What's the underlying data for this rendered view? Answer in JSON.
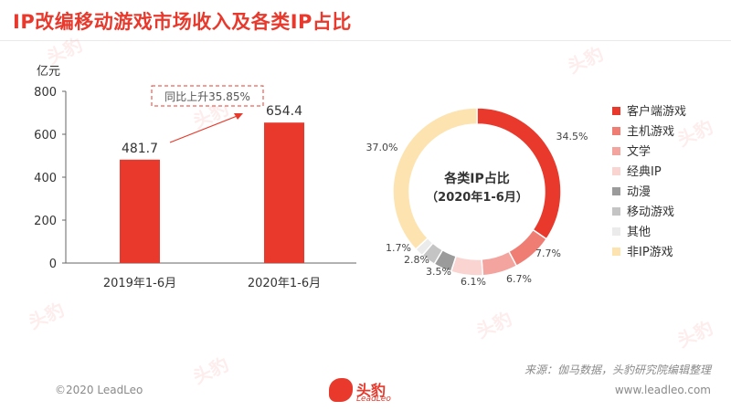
{
  "title": "IP改编移动游戏市场收入及各类IP占比",
  "bar_chart": {
    "unit_label": "亿元",
    "annotation": "同比上升35.85%",
    "bar_color": "#e8392c"
  },
  "donut_chart": {
    "center_line1": "各类IP占比",
    "center_line2": "（2020年1-6月）"
  },
  "chart_data": [
    {
      "type": "bar",
      "categories": [
        "2019年1-6月",
        "2020年1-6月"
      ],
      "values": [
        481.7,
        654.4
      ],
      "value_labels": [
        "481.7",
        "654.4"
      ],
      "ylabel": "亿元",
      "ylim": [
        0,
        800
      ],
      "yticks": [
        0,
        200,
        400,
        600,
        800
      ],
      "grid": false
    },
    {
      "type": "pie",
      "style": "donut",
      "legend_position": "right",
      "slices": [
        {
          "name": "客户端游戏",
          "value": 34.5,
          "label": "34.5%",
          "color": "#e8392c"
        },
        {
          "name": "主机游戏",
          "value": 7.7,
          "label": "7.7%",
          "color": "#ef7d74"
        },
        {
          "name": "文学",
          "value": 6.7,
          "label": "6.7%",
          "color": "#f3a49e"
        },
        {
          "name": "经典IP",
          "value": 6.1,
          "label": "6.1%",
          "color": "#f9d4d1"
        },
        {
          "name": "动漫",
          "value": 3.5,
          "label": "3.5%",
          "color": "#9b9b9b"
        },
        {
          "name": "移动游戏",
          "value": 2.8,
          "label": "2.8%",
          "color": "#c4c4c4"
        },
        {
          "name": "其他",
          "value": 1.7,
          "label": "1.7%",
          "color": "#ebebeb"
        },
        {
          "name": "非IP游戏",
          "value": 37.0,
          "label": "37.0%",
          "color": "#fde3b0"
        }
      ]
    }
  ],
  "source": "来源：伽马数据，头豹研究院编辑整理",
  "footer": {
    "copyright": "©2020 LeadLeo",
    "website": "www.leadleo.com",
    "logo_text": "头豹",
    "logo_sub": "LeadLeo"
  }
}
